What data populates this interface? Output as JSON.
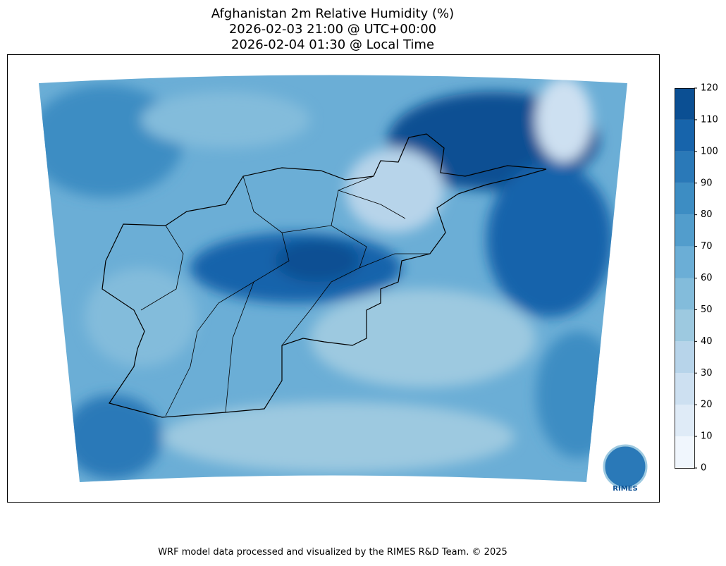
{
  "map": {
    "title": [
      "Afghanistan 2m Relative Humidity (%)",
      "2026-02-03 21:00 @ UTC+00:00",
      "2026-02-04 01:30 @ Local Time"
    ],
    "colorbar": {
      "lim": [
        0,
        120
      ],
      "ticks": [
        0,
        10,
        20,
        30,
        40,
        50,
        60,
        70,
        80,
        90,
        100,
        110,
        120
      ],
      "colors": [
        "#f0f6fd",
        "#dfebf7",
        "#cde0f1",
        "#b7d4ea",
        "#9dc9e0",
        "#83bcdb",
        "#6baed6",
        "#529dcc",
        "#3d8dc3",
        "#2a79b8",
        "#1764ab",
        "#0b4f93"
      ]
    },
    "logo": "RIMES",
    "footer": "WRF model data processed and visualized by the RIMES R&D Team. © 2025"
  }
}
